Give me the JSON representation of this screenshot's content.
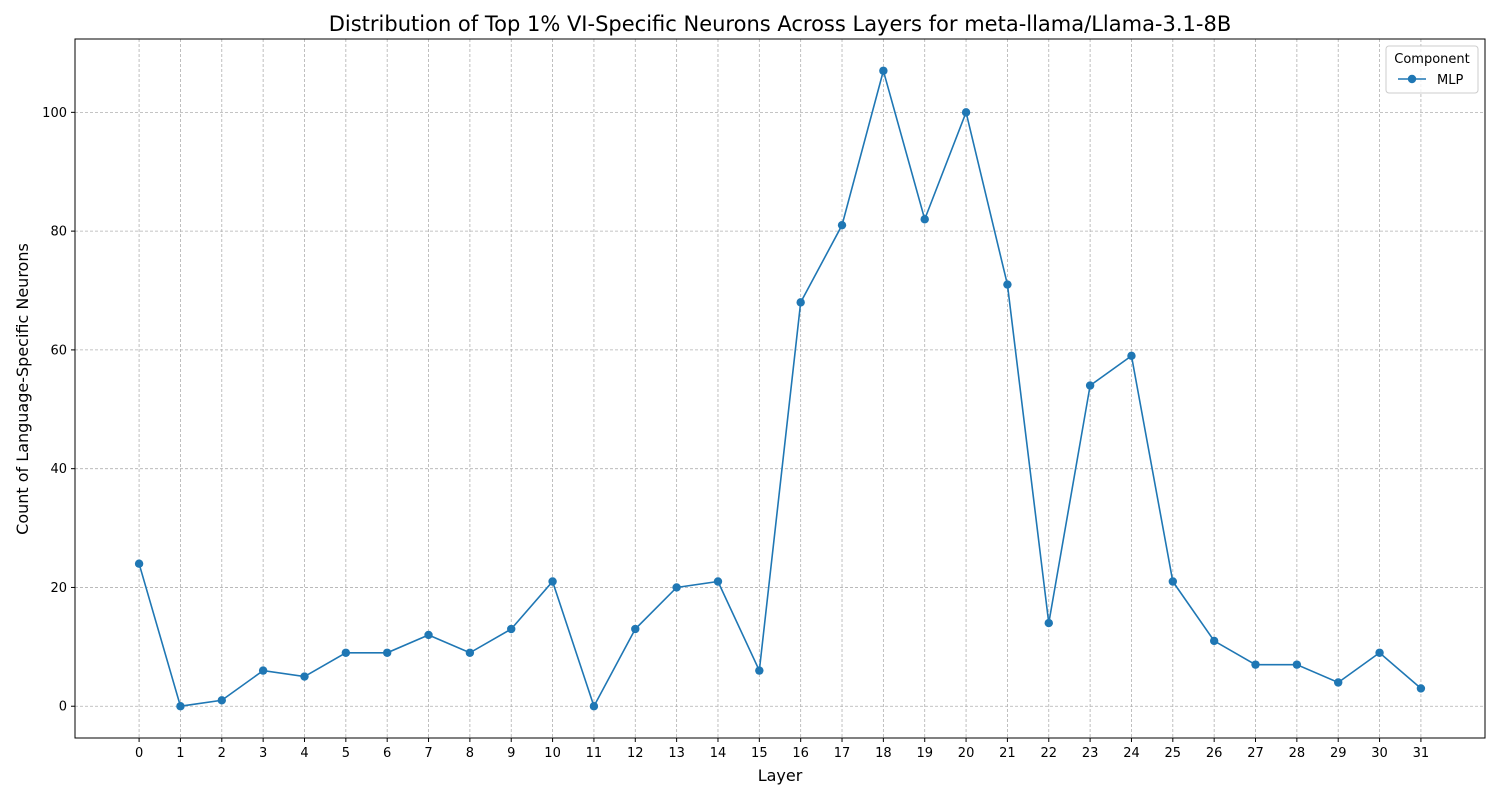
{
  "chart_data": {
    "type": "line",
    "title": "Distribution of Top 1% VI-Specific Neurons Across Layers for meta-llama/Llama-3.1-8B",
    "xlabel": "Layer",
    "ylabel": "Count of Language-Specific Neurons",
    "x": [
      0,
      1,
      2,
      3,
      4,
      5,
      6,
      7,
      8,
      9,
      10,
      11,
      12,
      13,
      14,
      15,
      16,
      17,
      18,
      19,
      20,
      21,
      22,
      23,
      24,
      25,
      26,
      27,
      28,
      29,
      30,
      31
    ],
    "series": [
      {
        "name": "MLP",
        "color": "#1f77b4",
        "values": [
          24,
          0,
          1,
          6,
          5,
          9,
          9,
          12,
          9,
          13,
          21,
          0,
          13,
          20,
          21,
          6,
          68,
          81,
          107,
          82,
          100,
          71,
          14,
          54,
          59,
          21,
          11,
          7,
          7,
          4,
          9,
          3
        ]
      }
    ],
    "xlim": [
      -1.55,
      32.55
    ],
    "ylim": [
      -5.35,
      112.35
    ],
    "yticks": [
      0,
      20,
      40,
      60,
      80,
      100
    ],
    "grid": true,
    "legend": {
      "title": "Component",
      "placement": "top-right"
    }
  }
}
